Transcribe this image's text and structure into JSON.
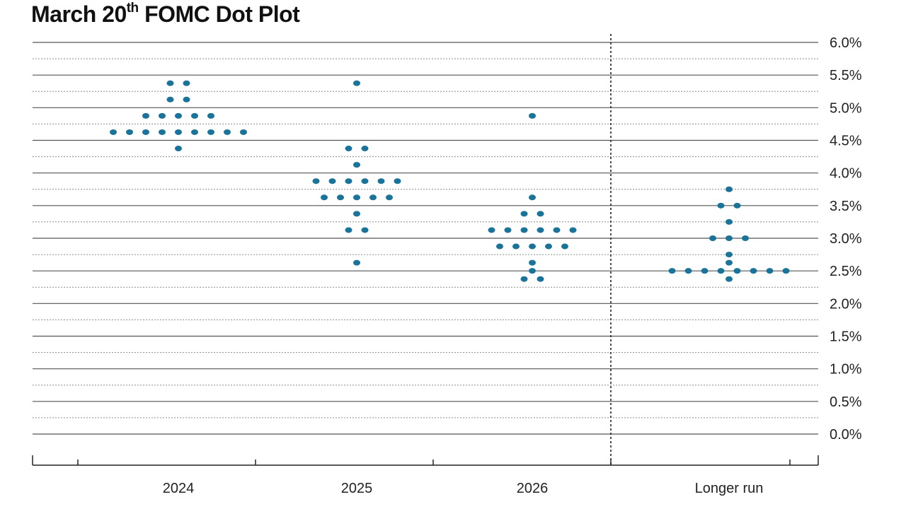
{
  "title": {
    "prefix": "March 20",
    "superscript": "th",
    "suffix": " FOMC Dot Plot"
  },
  "chart_data": {
    "type": "scatter",
    "title": "March 20th FOMC Dot Plot",
    "categories": [
      "2024",
      "2025",
      "2026",
      "Longer run"
    ],
    "y_tick_labels": [
      "0.0%",
      "0.5%",
      "1.0%",
      "1.5%",
      "2.0%",
      "2.5%",
      "3.0%",
      "3.5%",
      "4.0%",
      "4.5%",
      "5.0%",
      "5.5%",
      "6.0%"
    ],
    "ylim": [
      0,
      6
    ],
    "y_tick_step": 0.5,
    "minor_grid_step": 0.25,
    "grid": true,
    "divider_before": "Longer run",
    "dot_color": "#1a7399",
    "columns": [
      {
        "category": "2024",
        "levels": [
          {
            "rate": 5.375,
            "count": 2
          },
          {
            "rate": 5.125,
            "count": 2
          },
          {
            "rate": 4.875,
            "count": 5
          },
          {
            "rate": 4.625,
            "count": 9
          },
          {
            "rate": 4.375,
            "count": 1
          }
        ]
      },
      {
        "category": "2025",
        "levels": [
          {
            "rate": 5.375,
            "count": 1
          },
          {
            "rate": 4.375,
            "count": 2
          },
          {
            "rate": 4.125,
            "count": 1
          },
          {
            "rate": 3.875,
            "count": 6
          },
          {
            "rate": 3.625,
            "count": 5
          },
          {
            "rate": 3.375,
            "count": 1
          },
          {
            "rate": 3.125,
            "count": 2
          },
          {
            "rate": 2.625,
            "count": 1
          }
        ]
      },
      {
        "category": "2026",
        "levels": [
          {
            "rate": 4.875,
            "count": 1
          },
          {
            "rate": 3.625,
            "count": 1
          },
          {
            "rate": 3.375,
            "count": 2
          },
          {
            "rate": 3.125,
            "count": 6
          },
          {
            "rate": 2.875,
            "count": 5
          },
          {
            "rate": 2.625,
            "count": 1
          },
          {
            "rate": 2.5,
            "count": 1
          },
          {
            "rate": 2.375,
            "count": 2
          }
        ]
      },
      {
        "category": "Longer run",
        "levels": [
          {
            "rate": 3.75,
            "count": 1
          },
          {
            "rate": 3.5,
            "count": 2
          },
          {
            "rate": 3.25,
            "count": 1
          },
          {
            "rate": 3.0,
            "count": 3
          },
          {
            "rate": 2.75,
            "count": 1
          },
          {
            "rate": 2.625,
            "count": 1
          },
          {
            "rate": 2.5,
            "count": 8
          },
          {
            "rate": 2.375,
            "count": 1
          }
        ]
      }
    ]
  }
}
